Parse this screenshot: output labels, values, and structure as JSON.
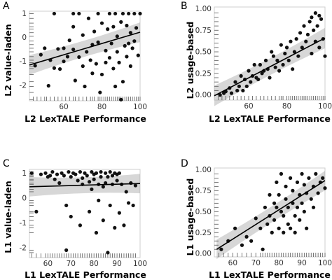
{
  "chart_data": [
    {
      "type": "scatter",
      "panel": "A",
      "xlabel": "L2 LexTALE Performance",
      "ylabel": "L2 value-laden",
      "xlim": [
        42,
        100
      ],
      "ylim": [
        -2.65,
        1.1
      ],
      "xticks": [
        60,
        80,
        100
      ],
      "yticks": [
        -2,
        -1,
        0,
        1
      ],
      "fit": {
        "x1": 42,
        "y1": -1.15,
        "x2": 100,
        "y2": 0.22
      },
      "points": [
        [
          45,
          -1.18
        ],
        [
          48,
          -0.72
        ],
        [
          50,
          -0.45
        ],
        [
          52,
          -2.02
        ],
        [
          53,
          -0.95
        ],
        [
          55,
          1.0
        ],
        [
          55,
          -1.28
        ],
        [
          57,
          -0.48
        ],
        [
          58,
          -1.32
        ],
        [
          60,
          -1.0
        ],
        [
          60,
          -0.45
        ],
        [
          62,
          -0.8
        ],
        [
          63,
          -0.12
        ],
        [
          65,
          1.0
        ],
        [
          65,
          0.45
        ],
        [
          65,
          -0.5
        ],
        [
          66,
          -1.8
        ],
        [
          68,
          1.0
        ],
        [
          68,
          -0.82
        ],
        [
          70,
          0.1
        ],
        [
          70,
          -1.2
        ],
        [
          71,
          -2.05
        ],
        [
          72,
          -0.6
        ],
        [
          73,
          0.8
        ],
        [
          74,
          -0.95
        ],
        [
          75,
          -1.5
        ],
        [
          75,
          -0.3
        ],
        [
          76,
          0.25
        ],
        [
          77,
          -1.1
        ],
        [
          78,
          1.0
        ],
        [
          78,
          -0.2
        ],
        [
          79,
          -2.3
        ],
        [
          80,
          0.6
        ],
        [
          80,
          -1.55
        ],
        [
          82,
          -0.55
        ],
        [
          82,
          -1.05
        ],
        [
          83,
          0.35
        ],
        [
          84,
          1.0
        ],
        [
          84,
          -0.85
        ],
        [
          85,
          -0.25
        ],
        [
          86,
          0.45
        ],
        [
          86,
          -1.3
        ],
        [
          87,
          1.0
        ],
        [
          87,
          -2.05
        ],
        [
          88,
          0.05
        ],
        [
          88,
          -0.6
        ],
        [
          89,
          -1.05
        ],
        [
          90,
          0.65
        ],
        [
          90,
          -2.6
        ],
        [
          91,
          1.0
        ],
        [
          91,
          -1.85
        ],
        [
          92,
          -0.35
        ],
        [
          93,
          -0.8
        ],
        [
          93,
          0.5
        ],
        [
          94,
          1.0
        ],
        [
          94,
          -0.25
        ],
        [
          95,
          -1.2
        ],
        [
          95,
          0.2
        ],
        [
          96,
          -0.45
        ],
        [
          97,
          1.0
        ],
        [
          97,
          -0.15
        ],
        [
          98,
          0.4
        ],
        [
          99,
          -0.75
        ],
        [
          100,
          1.0
        ]
      ],
      "rug_x": [
        44,
        46,
        48,
        50,
        51,
        53,
        55,
        57,
        59,
        61,
        63,
        65,
        66,
        68,
        70,
        72,
        74,
        75,
        76,
        78,
        79,
        80,
        81,
        82,
        83,
        84,
        85,
        86,
        87,
        88,
        89,
        90,
        91,
        92,
        93,
        94,
        95,
        96,
        97,
        98,
        99,
        100
      ],
      "rug_y": [
        -2.6,
        -2.3,
        -2.05,
        -1.85,
        -1.55,
        -1.3,
        -1.2,
        -1.05,
        -0.95,
        -0.8,
        -0.6,
        -0.45,
        -0.3,
        -0.15,
        0.05,
        0.2,
        0.35,
        0.45,
        0.6,
        0.8,
        1.0
      ]
    },
    {
      "type": "scatter",
      "panel": "B",
      "xlabel": "L2 LexTALE Performance",
      "ylabel": "L2 usage-based",
      "xlim": [
        42,
        100
      ],
      "ylim": [
        -0.06,
        1.02
      ],
      "xticks": [
        60,
        80,
        100
      ],
      "yticks": [
        0.0,
        0.25,
        0.5,
        0.75,
        1.0
      ],
      "tick_labels_y": [
        "0.00",
        "0.25",
        "0.50",
        "0.75",
        "1.00"
      ],
      "fit": {
        "x1": 42,
        "y1": -0.01,
        "x2": 100,
        "y2": 0.66
      },
      "points": [
        [
          45,
          0.0
        ],
        [
          47,
          0.02
        ],
        [
          48,
          0.04
        ],
        [
          50,
          0.08
        ],
        [
          51,
          0.02
        ],
        [
          53,
          0.15
        ],
        [
          54,
          0.05
        ],
        [
          55,
          0.1
        ],
        [
          56,
          0.22
        ],
        [
          57,
          0.05
        ],
        [
          58,
          0.18
        ],
        [
          59,
          0.1
        ],
        [
          60,
          0.28
        ],
        [
          61,
          0.15
        ],
        [
          62,
          0.22
        ],
        [
          63,
          0.35
        ],
        [
          64,
          0.2
        ],
        [
          65,
          0.18
        ],
        [
          66,
          0.35
        ],
        [
          67,
          0.25
        ],
        [
          68,
          0.28
        ],
        [
          69,
          0.4
        ],
        [
          70,
          0.3
        ],
        [
          71,
          0.2
        ],
        [
          72,
          0.5
        ],
        [
          73,
          0.45
        ],
        [
          74,
          0.32
        ],
        [
          75,
          0.4
        ],
        [
          76,
          0.28
        ],
        [
          77,
          0.58
        ],
        [
          78,
          0.35
        ],
        [
          79,
          0.48
        ],
        [
          80,
          0.55
        ],
        [
          81,
          0.4
        ],
        [
          82,
          0.62
        ],
        [
          83,
          0.3
        ],
        [
          84,
          0.5
        ],
        [
          85,
          0.65
        ],
        [
          86,
          0.45
        ],
        [
          87,
          0.72
        ],
        [
          88,
          0.55
        ],
        [
          89,
          0.8
        ],
        [
          90,
          0.62
        ],
        [
          91,
          0.7
        ],
        [
          92,
          0.85
        ],
        [
          93,
          0.48
        ],
        [
          93,
          0.9
        ],
        [
          94,
          0.75
        ],
        [
          95,
          0.62
        ],
        [
          95,
          0.95
        ],
        [
          96,
          0.8
        ],
        [
          97,
          0.55
        ],
        [
          97,
          0.92
        ],
        [
          98,
          0.88
        ],
        [
          99,
          0.65
        ],
        [
          100,
          0.45
        ]
      ],
      "rug_x": [
        44,
        46,
        48,
        50,
        52,
        54,
        56,
        58,
        60,
        62,
        64,
        66,
        68,
        70,
        72,
        74,
        76,
        77,
        78,
        80,
        81,
        82,
        83,
        84,
        85,
        86,
        87,
        88,
        89,
        90,
        91,
        92,
        93,
        94,
        95,
        96,
        97,
        98,
        99,
        100
      ],
      "rug_y": [
        0.0,
        0.05,
        0.1,
        0.15,
        0.2,
        0.25,
        0.3,
        0.35,
        0.4,
        0.45,
        0.5,
        0.55,
        0.6,
        0.65,
        0.7,
        0.75,
        0.8,
        0.85,
        0.9,
        0.95
      ]
    },
    {
      "type": "scatter",
      "panel": "C",
      "xlabel": "L1 LexTALE Performance",
      "ylabel": "L1 value-laden",
      "xlim": [
        52,
        100
      ],
      "ylim": [
        -2.4,
        1.15
      ],
      "xticks": [
        60,
        70,
        80,
        90,
        100
      ],
      "yticks": [
        -2,
        -1,
        0,
        1
      ],
      "fit": {
        "x1": 52,
        "y1": 0.45,
        "x2": 100,
        "y2": 0.58
      },
      "points": [
        [
          53,
          1.0
        ],
        [
          55,
          -0.55
        ],
        [
          57,
          0.95
        ],
        [
          59,
          1.0
        ],
        [
          60,
          0.85
        ],
        [
          61,
          0.9
        ],
        [
          62,
          1.05
        ],
        [
          63,
          0.75
        ],
        [
          64,
          0.95
        ],
        [
          65,
          0.6
        ],
        [
          66,
          1.0
        ],
        [
          67,
          0.9
        ],
        [
          68,
          -0.3
        ],
        [
          68,
          -2.1
        ],
        [
          69,
          1.05
        ],
        [
          70,
          0.85
        ],
        [
          70,
          -0.75
        ],
        [
          71,
          1.0
        ],
        [
          72,
          0.95
        ],
        [
          73,
          0.7
        ],
        [
          74,
          -1.1
        ],
        [
          74,
          1.05
        ],
        [
          75,
          0.8
        ],
        [
          75,
          0.55
        ],
        [
          76,
          1.0
        ],
        [
          77,
          0.9
        ],
        [
          78,
          0.65
        ],
        [
          78,
          -0.55
        ],
        [
          79,
          1.05
        ],
        [
          79,
          0.35
        ],
        [
          80,
          0.95
        ],
        [
          80,
          0.75
        ],
        [
          81,
          -1.4
        ],
        [
          81,
          1.0
        ],
        [
          82,
          0.55
        ],
        [
          82,
          -0.1
        ],
        [
          83,
          0.85
        ],
        [
          83,
          1.05
        ],
        [
          84,
          0.45
        ],
        [
          84,
          -0.9
        ],
        [
          85,
          1.0
        ],
        [
          85,
          0.6
        ],
        [
          86,
          0.85
        ],
        [
          86,
          -2.2
        ],
        [
          87,
          1.05
        ],
        [
          87,
          -0.3
        ],
        [
          88,
          0.9
        ],
        [
          88,
          0.55
        ],
        [
          89,
          1.0
        ],
        [
          89,
          -1.2
        ],
        [
          90,
          0.7
        ],
        [
          90,
          0.95
        ],
        [
          91,
          -0.6
        ],
        [
          91,
          1.0
        ],
        [
          92,
          0.55
        ],
        [
          93,
          -1.1
        ],
        [
          94,
          0.25
        ],
        [
          95,
          -0.2
        ],
        [
          96,
          0.6
        ],
        [
          97,
          -0.3
        ],
        [
          98,
          0.5
        ]
      ],
      "rug_x": [
        53,
        55,
        57,
        59,
        60,
        61,
        62,
        63,
        64,
        65,
        66,
        67,
        68,
        69,
        70,
        71,
        72,
        73,
        74,
        75,
        76,
        77,
        78,
        79,
        80,
        81,
        82,
        83,
        84,
        85,
        86,
        87,
        88,
        89,
        90,
        91,
        92,
        93,
        94,
        95,
        96,
        97,
        98
      ],
      "rug_y": [
        -2.2,
        -2.1,
        -1.4,
        -1.2,
        -1.1,
        -0.9,
        -0.75,
        -0.6,
        -0.55,
        -0.3,
        -0.2,
        -0.1,
        0.25,
        0.35,
        0.45,
        0.55,
        0.6,
        0.7,
        0.75,
        0.85,
        0.9,
        0.95,
        1.0,
        1.05
      ]
    },
    {
      "type": "scatter",
      "panel": "D",
      "xlabel": "L1 LexTALE Performance",
      "ylabel": "L1 usage-based",
      "xlim": [
        52,
        100
      ],
      "ylim": [
        -0.04,
        1.02
      ],
      "xticks": [
        60,
        70,
        80,
        90,
        100
      ],
      "yticks": [
        0.0,
        0.25,
        0.5,
        0.75,
        1.0
      ],
      "tick_labels_y": [
        "0.00",
        "0.25",
        "0.50",
        "0.75",
        "1.00"
      ],
      "fit": {
        "x1": 53,
        "y1": 0.05,
        "x2": 100,
        "y2": 0.87
      },
      "points": [
        [
          55,
          0.05
        ],
        [
          58,
          0.15
        ],
        [
          61,
          0.3
        ],
        [
          64,
          0.1
        ],
        [
          66,
          0.2
        ],
        [
          68,
          0.15
        ],
        [
          70,
          0.42
        ],
        [
          72,
          0.3
        ],
        [
          73,
          0.05
        ],
        [
          74,
          0.55
        ],
        [
          75,
          0.35
        ],
        [
          76,
          0.7
        ],
        [
          76,
          0.45
        ],
        [
          77,
          0.25
        ],
        [
          78,
          0.6
        ],
        [
          78,
          0.4
        ],
        [
          79,
          0.85
        ],
        [
          79,
          0.55
        ],
        [
          80,
          0.3
        ],
        [
          80,
          0.7
        ],
        [
          81,
          0.5
        ],
        [
          81,
          0.95
        ],
        [
          82,
          0.45
        ],
        [
          82,
          0.25
        ],
        [
          83,
          0.65
        ],
        [
          83,
          0.8
        ],
        [
          84,
          0.35
        ],
        [
          84,
          0.55
        ],
        [
          85,
          0.9
        ],
        [
          85,
          0.3
        ],
        [
          86,
          0.6
        ],
        [
          86,
          0.75
        ],
        [
          87,
          0.45
        ],
        [
          87,
          0.25
        ],
        [
          88,
          0.85
        ],
        [
          88,
          0.55
        ],
        [
          89,
          0.7
        ],
        [
          89,
          0.4
        ],
        [
          90,
          0.95
        ],
        [
          90,
          0.6
        ],
        [
          91,
          0.5
        ],
        [
          91,
          0.82
        ],
        [
          92,
          0.72
        ],
        [
          92,
          0.3
        ],
        [
          93,
          0.9
        ],
        [
          94,
          0.65
        ],
        [
          95,
          0.8
        ],
        [
          95,
          0.55
        ],
        [
          96,
          0.95
        ],
        [
          97,
          0.72
        ],
        [
          98,
          0.85
        ],
        [
          99,
          0.9
        ],
        [
          100,
          0.78
        ]
      ],
      "rug_x": [
        54,
        56,
        58,
        60,
        62,
        64,
        66,
        68,
        70,
        72,
        73,
        74,
        75,
        76,
        77,
        78,
        79,
        80,
        81,
        82,
        83,
        84,
        85,
        86,
        87,
        88,
        89,
        90,
        91,
        92,
        93,
        94,
        95,
        96,
        97,
        98,
        99,
        100
      ],
      "rug_y": [
        0.05,
        0.1,
        0.15,
        0.2,
        0.25,
        0.3,
        0.35,
        0.4,
        0.45,
        0.5,
        0.55,
        0.6,
        0.65,
        0.7,
        0.75,
        0.8,
        0.85,
        0.9,
        0.95
      ]
    }
  ]
}
